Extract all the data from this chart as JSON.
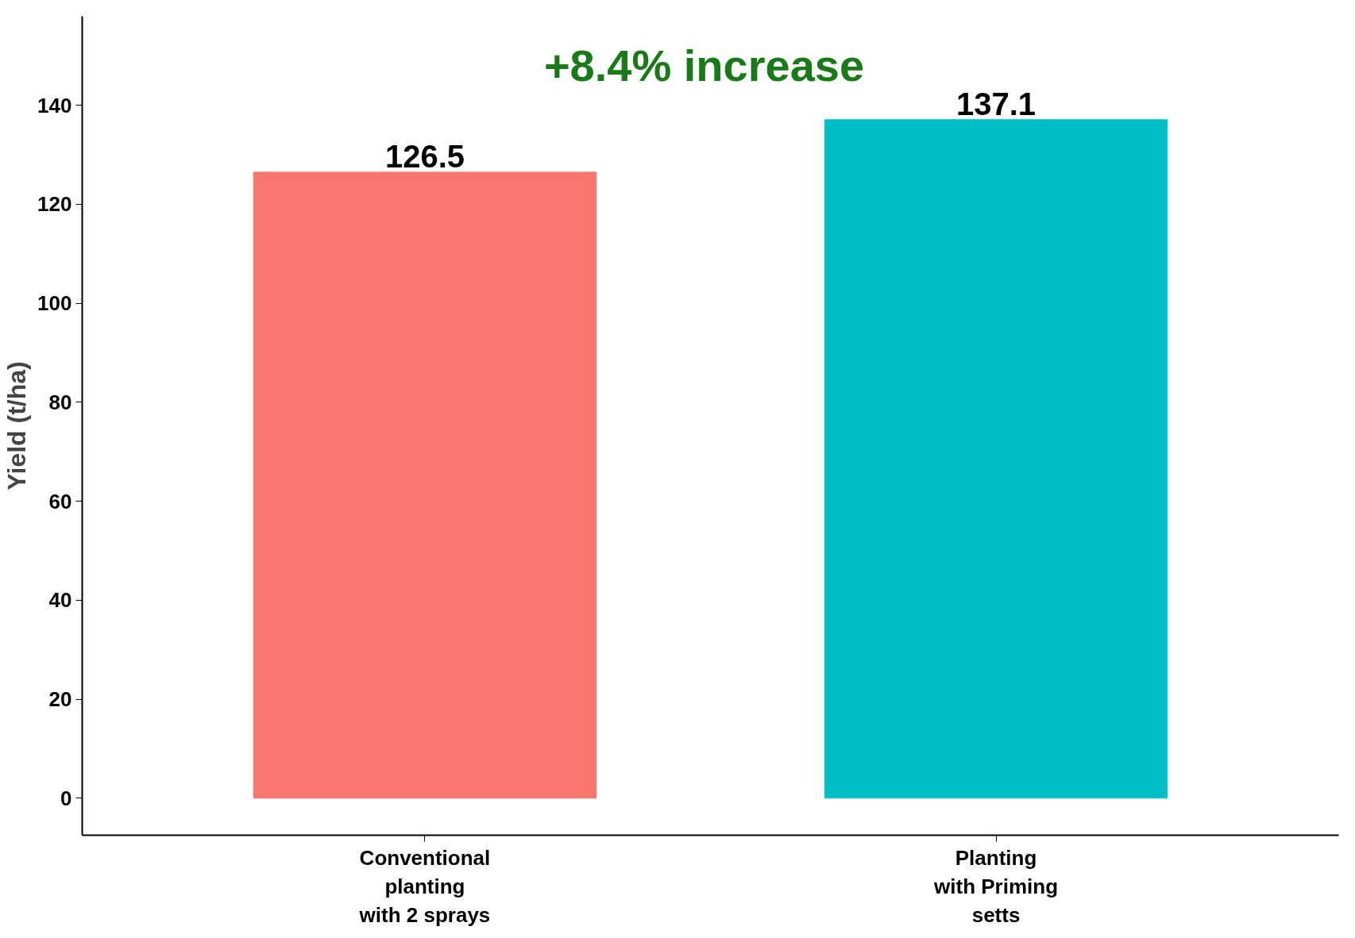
{
  "chart_data": {
    "type": "bar",
    "ylabel": "Yield (t/ha)",
    "categories": [
      "Conventional\nplanting\nwith 2 sprays",
      "Planting\nwith Priming\nsetts"
    ],
    "values": [
      126.5,
      137.1
    ],
    "colors": [
      "#f8766d",
      "#00bfc4"
    ],
    "ylim": [
      -7.5,
      158
    ],
    "yticks": [
      0,
      20,
      40,
      60,
      80,
      100,
      120,
      140
    ],
    "data_labels": true,
    "grid": false,
    "annotations": [
      "+8.4% increase"
    ]
  }
}
